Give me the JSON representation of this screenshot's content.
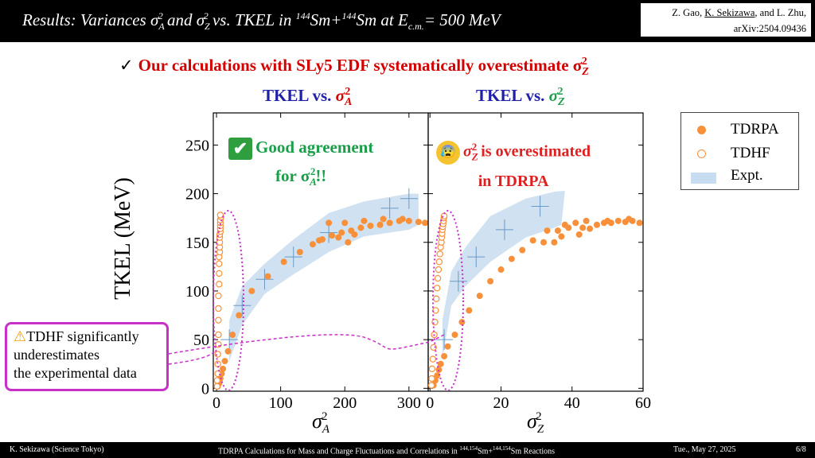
{
  "header": {
    "title_text": "Results:  Variances σ",
    "title_sub1": "A",
    "title_sup1": "2",
    "title_mid": " and σ",
    "title_sub2": "Z",
    "title_sup2": "2",
    "title_mid2": " vs. TKEL in ",
    "title_mass1": "144",
    "title_nuc1": "Sm+",
    "title_mass2": "144",
    "title_nuc2": "Sm at E",
    "title_sub3": "c.m.",
    "title_end": "= 500 MeV",
    "credit_line1_pre": "Z. Gao, ",
    "credit_line1_u": "K. Sekizawa",
    "credit_line1_post": ", and L. Zhu,",
    "credit_line2": "arXiv:2504.09436"
  },
  "headline": {
    "check": "✓",
    "text": "Our calculations with SLy5 EDF systematically overestimate σ",
    "sub": "Z",
    "sup": "2"
  },
  "panel_titles": {
    "left_pre": "TKEL vs. ",
    "left_sym": "σ",
    "left_sub": "A",
    "left_sup": "2",
    "right_pre": "TKEL vs. ",
    "right_sym": "σ",
    "right_sub": "Z",
    "right_sup": "2"
  },
  "annotations": {
    "left_line1": "Good agreement",
    "left_line2_pre": "for σ",
    "left_line2_sub": "A",
    "left_line2_sup": "2",
    "left_line2_post": "!!",
    "left_icon": "✔",
    "right_icon": "😰",
    "right_line1_sym": "σ",
    "right_line1_sub": "Z",
    "right_line1_sup": "2",
    "right_line1_post": " is overestimated",
    "right_line2": "in TDRPA"
  },
  "callout": {
    "icon": "⚠",
    "line1": "TDHF significantly",
    "line2": "underestimates",
    "line3": "the experimental data"
  },
  "legend": {
    "tdrpa": "TDRPA",
    "tdhf": "TDHF",
    "expt": "Expt."
  },
  "axis_labels": {
    "y": "TKEL (MeV)",
    "x_left_sym": "σ",
    "x_left_sub": "A",
    "x_left_sup": "2",
    "x_right_sym": "σ",
    "x_right_sub": "Z",
    "x_right_sup": "2"
  },
  "colors": {
    "tdrpa": "#f7903a",
    "tdhf": "#f7903a",
    "expt_band": "#c8dcef",
    "expt_cross": "#6a9ac6",
    "ellipse": "#c830c8",
    "headline": "#d40000",
    "panel_title": "#1f1fa8",
    "green": "#1a9e4a"
  },
  "chart_data": [
    {
      "type": "scatter",
      "panel": "left",
      "xlabel": "σA²",
      "ylabel": "TKEL (MeV)",
      "xlim": [
        -5,
        330
      ],
      "ylim": [
        -3,
        283
      ],
      "xticks": [
        0,
        100,
        200,
        300
      ],
      "yticks": [
        0,
        50,
        100,
        150,
        200,
        250
      ],
      "series": [
        {
          "name": "TDRPA",
          "marker": "filled",
          "points": [
            [
              2,
              2
            ],
            [
              4,
              5
            ],
            [
              6,
              10
            ],
            [
              8,
              15
            ],
            [
              10,
              20
            ],
            [
              13,
              28
            ],
            [
              18,
              38
            ],
            [
              25,
              55
            ],
            [
              35,
              75
            ],
            [
              55,
              100
            ],
            [
              80,
              115
            ],
            [
              105,
              130
            ],
            [
              130,
              140
            ],
            [
              150,
              148
            ],
            [
              165,
              153
            ],
            [
              180,
              157
            ],
            [
              195,
              160
            ],
            [
              210,
              162
            ],
            [
              225,
              165
            ],
            [
              240,
              167
            ],
            [
              255,
              168
            ],
            [
              270,
              170
            ],
            [
              285,
              172
            ],
            [
              300,
              172
            ],
            [
              315,
              171
            ],
            [
              325,
              170
            ],
            [
              160,
              152
            ],
            [
              175,
              170
            ],
            [
              200,
              170
            ],
            [
              230,
              172
            ],
            [
              260,
              174
            ],
            [
              290,
              174
            ],
            [
              190,
              155
            ],
            [
              205,
              150
            ],
            [
              215,
              158
            ]
          ]
        },
        {
          "name": "TDHF",
          "marker": "open",
          "points": [
            [
              1,
              2
            ],
            [
              1,
              8
            ],
            [
              2,
              15
            ],
            [
              2,
              25
            ],
            [
              2,
              35
            ],
            [
              3,
              45
            ],
            [
              3,
              55
            ],
            [
              3,
              70
            ],
            [
              3,
              82
            ],
            [
              3,
              95
            ],
            [
              4,
              107
            ],
            [
              4,
              118
            ],
            [
              4,
              128
            ],
            [
              4,
              135
            ],
            [
              5,
              140
            ],
            [
              5,
              145
            ],
            [
              5,
              150
            ],
            [
              5,
              155
            ],
            [
              5,
              158
            ],
            [
              6,
              161
            ],
            [
              6,
              164
            ],
            [
              6,
              167
            ],
            [
              6,
              170
            ],
            [
              6,
              173
            ],
            [
              7,
              176
            ],
            [
              6,
              178
            ]
          ]
        },
        {
          "name": "Expt.",
          "marker": "band",
          "points": [
            [
              20,
              50
            ],
            [
              40,
              85
            ],
            [
              75,
              112
            ],
            [
              120,
              135
            ],
            [
              175,
              160
            ],
            [
              270,
              185
            ],
            [
              300,
              195
            ]
          ],
          "band_lower": [
            [
              20,
              28
            ],
            [
              40,
              65
            ],
            [
              75,
              97
            ],
            [
              120,
              117
            ],
            [
              175,
              140
            ],
            [
              230,
              156
            ],
            [
              300,
              163
            ],
            [
              315,
              168
            ]
          ],
          "band_upper": [
            [
              20,
              70
            ],
            [
              40,
              105
            ],
            [
              75,
              128
            ],
            [
              120,
              153
            ],
            [
              175,
              180
            ],
            [
              230,
              192
            ],
            [
              300,
              200
            ],
            [
              315,
              200
            ]
          ]
        }
      ]
    },
    {
      "type": "scatter",
      "panel": "right",
      "xlabel": "σZ²",
      "ylabel": "TKEL (MeV)",
      "xlim": [
        -0.5,
        60
      ],
      "ylim": [
        -3,
        283
      ],
      "xticks": [
        0,
        20,
        40,
        60
      ],
      "yticks": [
        0,
        50,
        100,
        150,
        200,
        250
      ],
      "series": [
        {
          "name": "TDRPA",
          "marker": "filled",
          "points": [
            [
              1,
              3
            ],
            [
              1.5,
              8
            ],
            [
              2,
              13
            ],
            [
              2.5,
              19
            ],
            [
              3,
              25
            ],
            [
              4,
              33
            ],
            [
              5,
              43
            ],
            [
              7,
              55
            ],
            [
              9,
              68
            ],
            [
              11,
              80
            ],
            [
              14,
              95
            ],
            [
              17,
              110
            ],
            [
              20,
              122
            ],
            [
              23,
              133
            ],
            [
              26,
              142
            ],
            [
              29,
              152
            ],
            [
              32,
              150
            ],
            [
              35,
              150
            ],
            [
              37,
              156
            ],
            [
              39,
              165
            ],
            [
              41,
              170
            ],
            [
              43,
              165
            ],
            [
              45,
              164
            ],
            [
              47,
              168
            ],
            [
              49,
              170
            ],
            [
              51,
              170
            ],
            [
              53,
              172
            ],
            [
              55,
              171
            ],
            [
              57,
              172
            ],
            [
              59,
              170
            ],
            [
              38,
              168
            ],
            [
              44,
              172
            ],
            [
              50,
              172
            ],
            [
              56,
              174
            ],
            [
              42,
              158
            ],
            [
              36,
              162
            ],
            [
              33,
              162
            ]
          ]
        },
        {
          "name": "TDHF",
          "marker": "open",
          "points": [
            [
              0.4,
              3
            ],
            [
              0.5,
              10
            ],
            [
              0.6,
              20
            ],
            [
              0.8,
              30
            ],
            [
              1,
              42
            ],
            [
              1.2,
              55
            ],
            [
              1.4,
              68
            ],
            [
              1.6,
              80
            ],
            [
              1.8,
              92
            ],
            [
              2,
              103
            ],
            [
              2.2,
              113
            ],
            [
              2.4,
              122
            ],
            [
              2.6,
              130
            ],
            [
              2.8,
              138
            ],
            [
              3,
              145
            ],
            [
              3.2,
              150
            ],
            [
              3.3,
              155
            ],
            [
              3.4,
              159
            ],
            [
              3.5,
              163
            ],
            [
              3.6,
              166
            ],
            [
              3.7,
              169
            ],
            [
              3.8,
              172
            ],
            [
              3.9,
              175
            ],
            [
              4,
              177
            ]
          ]
        },
        {
          "name": "Expt.",
          "marker": "band",
          "points": [
            [
              4,
              50
            ],
            [
              8,
              110
            ],
            [
              13,
              135
            ],
            [
              21,
              163
            ],
            [
              31,
              187
            ]
          ],
          "band_lower": [
            [
              3.5,
              30
            ],
            [
              6,
              85
            ],
            [
              10,
              105
            ],
            [
              17,
              130
            ],
            [
              27,
              155
            ],
            [
              35,
              165
            ],
            [
              37,
              168
            ]
          ],
          "band_upper": [
            [
              3.5,
              70
            ],
            [
              6,
              120
            ],
            [
              10,
              145
            ],
            [
              17,
              177
            ],
            [
              27,
              195
            ],
            [
              35,
              202
            ],
            [
              38,
              203
            ]
          ]
        }
      ]
    }
  ]
}
